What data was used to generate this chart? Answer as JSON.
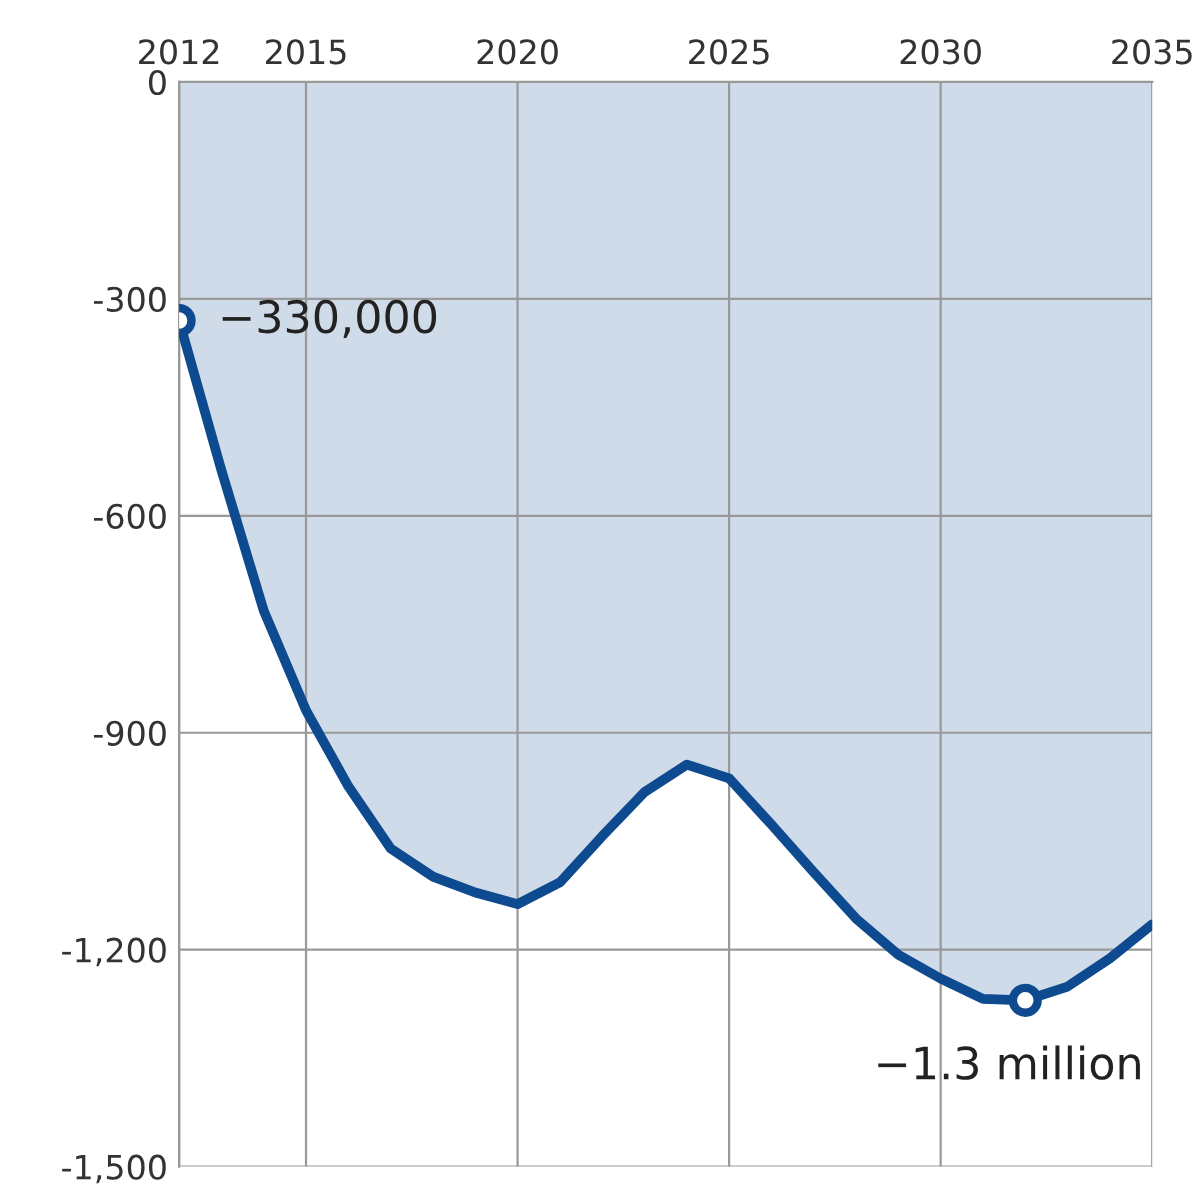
{
  "chart_data": {
    "type": "area",
    "x": [
      2012,
      2013,
      2014,
      2015,
      2016,
      2017,
      2018,
      2019,
      2020,
      2021,
      2022,
      2023,
      2024,
      2025,
      2026,
      2027,
      2028,
      2029,
      2030,
      2031,
      2032,
      2033,
      2034,
      2035
    ],
    "series": [
      {
        "color": "#0d4a8f",
        "values": [
          -330,
          -537,
          -731,
          -869,
          -974,
          -1060,
          -1099,
          -1121,
          -1137,
          -1107,
          -1043,
          -982,
          -944,
          -963,
          -1027,
          -1093,
          -1157,
          -1207,
          -1240,
          -1268,
          -1270,
          -1251,
          -1212,
          -1165
        ]
      },
      {
        "type": "scatter",
        "color": "#0d4a8f",
        "marker": "circle",
        "x": [
          2012,
          2032
        ],
        "values": [
          -330,
          -1270
        ]
      }
    ],
    "xlim": [
      2012,
      2035
    ],
    "xticks": [
      2012,
      2015,
      2020,
      2025,
      2030,
      2035
    ],
    "ylim": [
      -1500,
      0
    ],
    "yticks": [
      0,
      {
        "value": -300,
        "label": "-300"
      },
      {
        "value": -600,
        "label": "-600"
      },
      {
        "value": -900,
        "label": "-900"
      },
      {
        "value": -1200,
        "label": "-1,200"
      },
      {
        "value": -1500,
        "label": "-1,500"
      }
    ],
    "grid": true,
    "annotations": [
      {
        "text": "−330,000",
        "x": 2012,
        "y": -330
      },
      {
        "text": "−1.3 million",
        "x": 2032,
        "y": -1270
      }
    ]
  }
}
